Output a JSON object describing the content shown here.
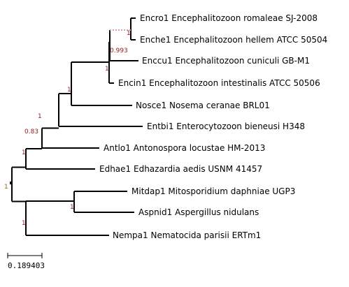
{
  "tree": {
    "leaves": [
      {
        "id": "encro1",
        "label": "Encro1 Encephalitozoon romaleae SJ-2008"
      },
      {
        "id": "enche1",
        "label": "Enche1 Encephalitozoon hellem ATCC 50504"
      },
      {
        "id": "enccu1",
        "label": "Enccu1 Encephalitozoon cuniculi GB-M1"
      },
      {
        "id": "encin1",
        "label": "Encin1 Encephalitozoon intestinalis ATCC 50506"
      },
      {
        "id": "nosce1",
        "label": "Nosce1 Nosema ceranae BRL01"
      },
      {
        "id": "entbi1",
        "label": "Entbi1 Enterocytozoon bieneusi H348"
      },
      {
        "id": "antlo1",
        "label": "Antlo1 Antonospora locustae HM-2013"
      },
      {
        "id": "edhae1",
        "label": "Edhae1 Edhazardia aedis USNM 41457"
      },
      {
        "id": "mitdap1",
        "label": "Mitdap1 Mitosporidium daphniae UGP3"
      },
      {
        "id": "aspnid1",
        "label": "Aspnid1 Aspergillus nidulans"
      },
      {
        "id": "nempa1",
        "label": "Nempa1 Nematocida parisii ERTm1"
      }
    ],
    "support_values": {
      "root": "1",
      "microsporidia_clade": "1",
      "antlo_clade": "0.83",
      "entbi_clade": "1",
      "nosce_clade": "1",
      "encephalitozoon_clade": "1",
      "enccu_clade": "0.993",
      "romaleae_hellem": "1",
      "outgroup_clade": "1",
      "mitdap_aspnid": "1"
    },
    "colors": {
      "branch": "#000000",
      "support_label": "#8b1a1a",
      "uncertain_branch": "#d9a0a0"
    }
  },
  "scale_bar": {
    "value": "0.189403"
  }
}
